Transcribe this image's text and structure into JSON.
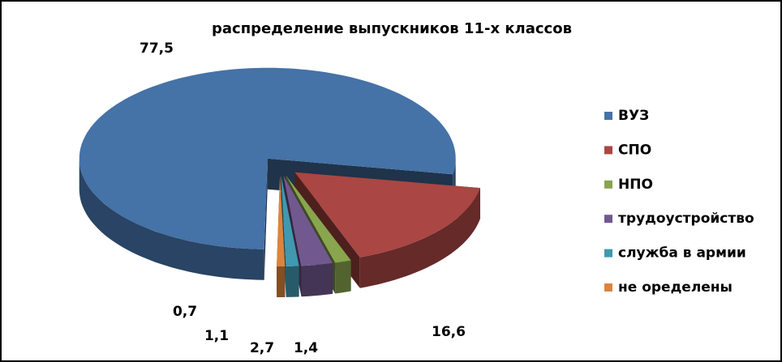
{
  "chart_data": {
    "type": "pie3d",
    "title": "распределение выпускников 11-х классов",
    "categories": [
      "ВУЗ",
      "СПО",
      "НПО",
      "трудоустройство",
      "служба в армии",
      "не оределены"
    ],
    "values": [
      77.5,
      16.6,
      1.4,
      2.7,
      1.1,
      0.7
    ],
    "value_labels": [
      "77,5",
      "16,6",
      "1,4",
      "2,7",
      "1,1",
      "0,7"
    ],
    "colors": [
      "#4572a7",
      "#aa4643",
      "#89a54e",
      "#71588f",
      "#4198af",
      "#db843d"
    ],
    "legend": "right"
  }
}
